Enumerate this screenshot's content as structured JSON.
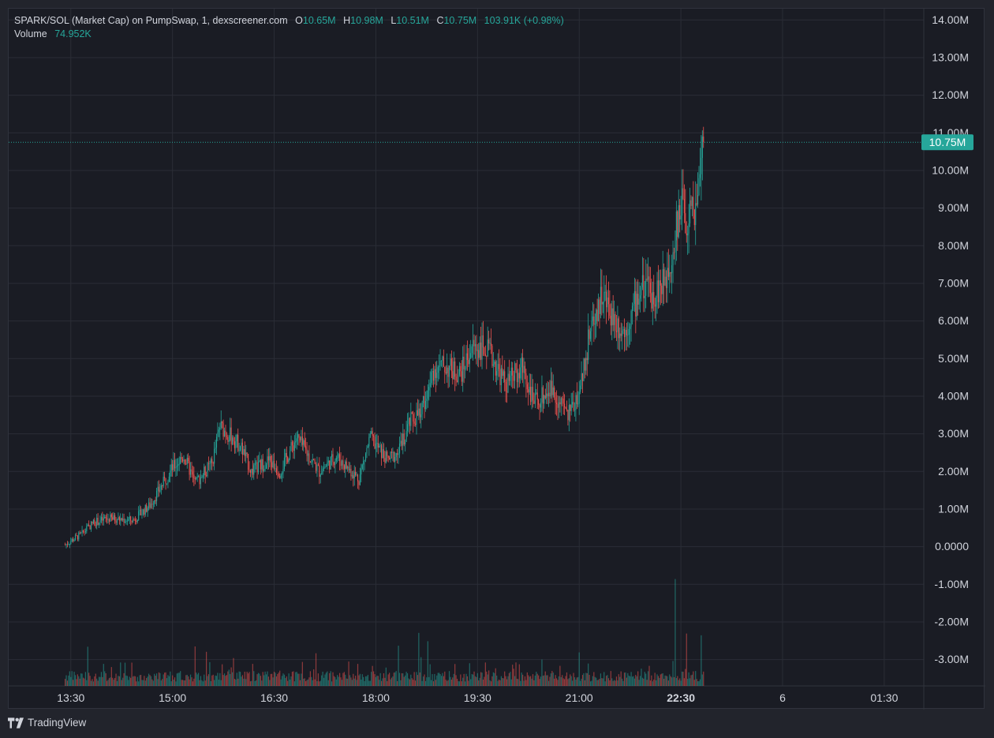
{
  "legend": {
    "symbol": "SPARK/SOL (Market Cap) on PumpSwap, 1, dexscreener.com",
    "o_label": "O",
    "o": "10.65M",
    "h_label": "H",
    "h": "10.98M",
    "l_label": "L",
    "l": "10.51M",
    "c_label": "C",
    "c": "10.75M",
    "change": "103.91K (+0.98%)",
    "volume_label": "Volume",
    "volume": "74.952K"
  },
  "brand": "TradingView",
  "colors": {
    "up": "#26a69a",
    "down": "#ef5350",
    "grid": "#2a2d36",
    "text": "#d1d4dc",
    "background": "#1a1c24"
  },
  "chart_data": {
    "type": "candlestick",
    "y_axis": {
      "ticks": [
        14,
        13,
        12,
        11,
        10,
        9,
        8,
        7,
        6,
        5,
        4,
        3,
        2,
        1,
        0,
        -1,
        -2,
        -3
      ],
      "tick_labels": [
        "14.00M",
        "13.00M",
        "12.00M",
        "11.00M",
        "10.00M",
        "9.00M",
        "8.00M",
        "7.00M",
        "6.00M",
        "5.00M",
        "4.00M",
        "3.00M",
        "2.00M",
        "1.00M",
        "0.0000",
        "-1.00M",
        "-2.00M",
        "-3.00M"
      ],
      "unit": "M",
      "range": [
        -3.7,
        14.3
      ]
    },
    "x_axis": {
      "ticks": [
        0,
        90,
        180,
        270,
        360,
        450,
        540,
        630,
        720
      ],
      "tick_labels": [
        "13:30",
        "15:00",
        "16:30",
        "18:00",
        "19:30",
        "21:00",
        "22:30",
        "6",
        "01:30"
      ],
      "bold_index": 6,
      "unit": "minutes since 13:30",
      "range": [
        -55,
        755
      ]
    },
    "last_price": {
      "value": 10.75,
      "label": "10.75M"
    },
    "price_path": [
      [
        -5,
        0.05
      ],
      [
        10,
        0.35
      ],
      [
        20,
        0.65
      ],
      [
        35,
        0.75
      ],
      [
        55,
        0.7
      ],
      [
        70,
        1.1
      ],
      [
        90,
        2.1
      ],
      [
        100,
        2.4
      ],
      [
        110,
        1.7
      ],
      [
        125,
        2.2
      ],
      [
        132,
        3.2
      ],
      [
        150,
        2.7
      ],
      [
        160,
        2.0
      ],
      [
        175,
        2.3
      ],
      [
        185,
        2.0
      ],
      [
        200,
        2.9
      ],
      [
        220,
        2.0
      ],
      [
        235,
        2.4
      ],
      [
        255,
        1.8
      ],
      [
        265,
        2.9
      ],
      [
        280,
        2.3
      ],
      [
        290,
        2.5
      ],
      [
        300,
        3.3
      ],
      [
        310,
        3.6
      ],
      [
        320,
        4.7
      ],
      [
        330,
        4.8
      ],
      [
        345,
        4.6
      ],
      [
        355,
        5.3
      ],
      [
        368,
        5.3
      ],
      [
        385,
        4.3
      ],
      [
        400,
        4.8
      ],
      [
        410,
        3.8
      ],
      [
        425,
        4.2
      ],
      [
        440,
        3.5
      ],
      [
        450,
        4.1
      ],
      [
        460,
        5.8
      ],
      [
        470,
        6.7
      ],
      [
        482,
        6.0
      ],
      [
        490,
        5.7
      ],
      [
        505,
        6.9
      ],
      [
        515,
        6.7
      ],
      [
        525,
        7.0
      ],
      [
        532,
        7.8
      ],
      [
        540,
        9.2
      ],
      [
        546,
        8.6
      ],
      [
        553,
        9.0
      ],
      [
        560,
        10.75
      ]
    ],
    "volume_spikes": [
      [
        15,
        0.55
      ],
      [
        110,
        0.6
      ],
      [
        120,
        0.5
      ],
      [
        290,
        0.55
      ],
      [
        308,
        0.75
      ],
      [
        316,
        0.6
      ],
      [
        450,
        0.45
      ],
      [
        535,
        1.55
      ],
      [
        545,
        0.75
      ],
      [
        558,
        0.7
      ]
    ]
  }
}
